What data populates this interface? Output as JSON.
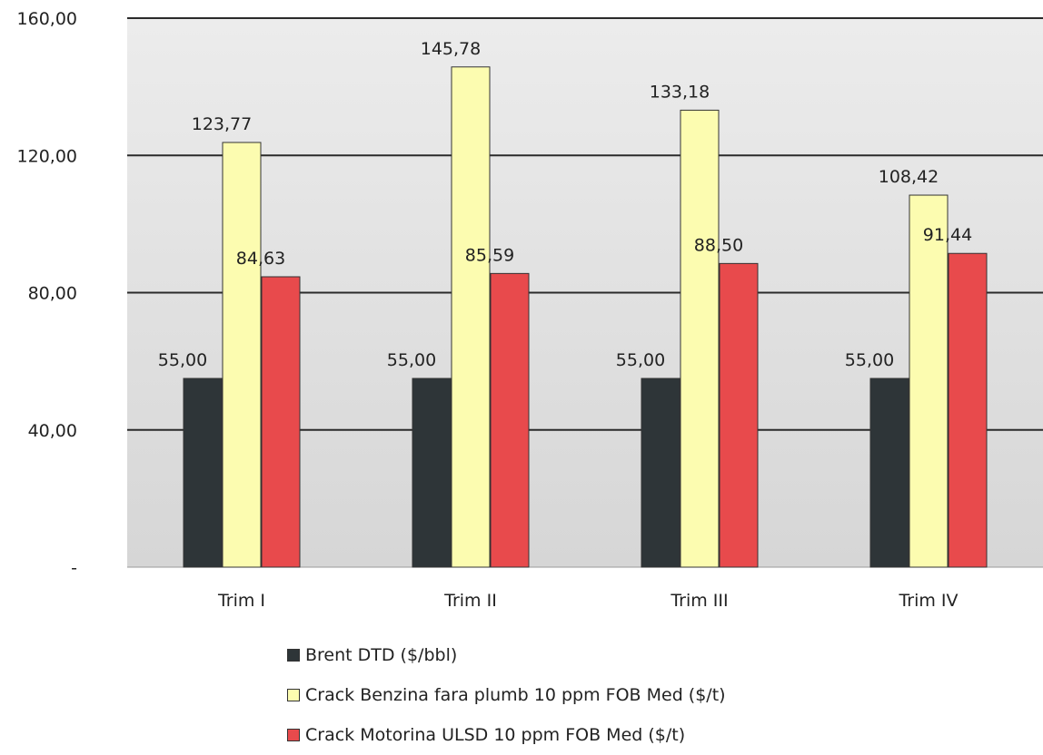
{
  "chart_data": {
    "type": "bar",
    "categories": [
      "Trim I",
      "Trim II",
      "Trim III",
      "Trim IV"
    ],
    "series": [
      {
        "name": "Brent DTD ($/bbl)",
        "color": "#2e3538",
        "values": [
          55.0,
          55.0,
          55.0,
          55.0
        ],
        "labels": [
          "55,00",
          "55,00",
          "55,00",
          "55,00"
        ]
      },
      {
        "name": "Crack Benzina fara plumb 10 ppm FOB Med ($/t)",
        "color": "#fcfcb0",
        "values": [
          123.77,
          145.78,
          133.18,
          108.42
        ],
        "labels": [
          "123,77",
          "145,78",
          "133,18",
          "108,42"
        ]
      },
      {
        "name": "Crack Motorina ULSD 10 ppm FOB Med ($/t)",
        "color": "#e84a4c",
        "values": [
          84.63,
          85.59,
          88.5,
          91.44
        ],
        "labels": [
          "84,63",
          "85,59",
          "88,50",
          "91,44"
        ]
      }
    ],
    "ylim": [
      0,
      160
    ],
    "yticks": [
      0,
      40,
      80,
      120,
      160
    ],
    "ytick_labels": [
      "-",
      "40,00",
      "80,00",
      "120,00",
      "160,00"
    ],
    "grid": true,
    "legend_position": "bottom",
    "title": "",
    "xlabel": "",
    "ylabel": ""
  }
}
